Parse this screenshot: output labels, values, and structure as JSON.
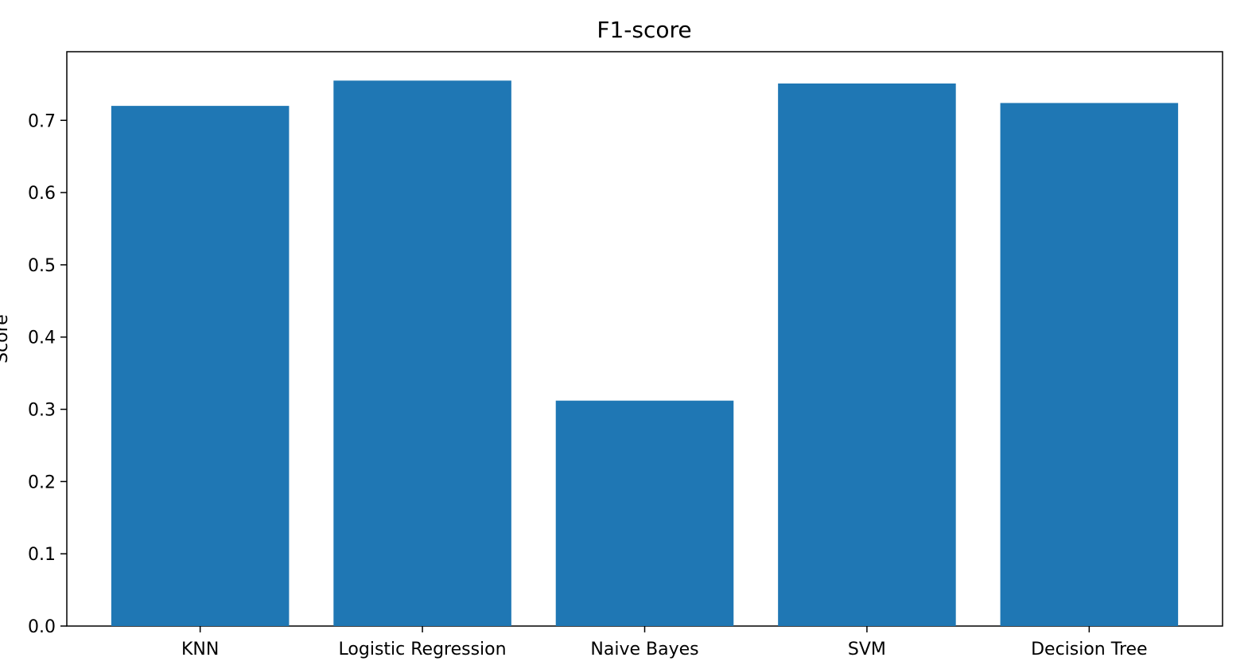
{
  "chart_data": {
    "type": "bar",
    "title": "F1-score",
    "xlabel": "",
    "ylabel": "Score",
    "categories": [
      "KNN",
      "Logistic Regression",
      "Naive Bayes",
      "SVM",
      "Decision Tree"
    ],
    "values": [
      0.72,
      0.755,
      0.312,
      0.751,
      0.724
    ],
    "ylim": [
      0,
      0.795
    ],
    "yticks": [
      0.0,
      0.1,
      0.2,
      0.3,
      0.4,
      0.5,
      0.6,
      0.7
    ],
    "ytick_labels": [
      "0.0",
      "0.1",
      "0.2",
      "0.3",
      "0.4",
      "0.5",
      "0.6",
      "0.7"
    ],
    "bar_color": "#1f77b4",
    "grid": false,
    "legend": "none"
  }
}
